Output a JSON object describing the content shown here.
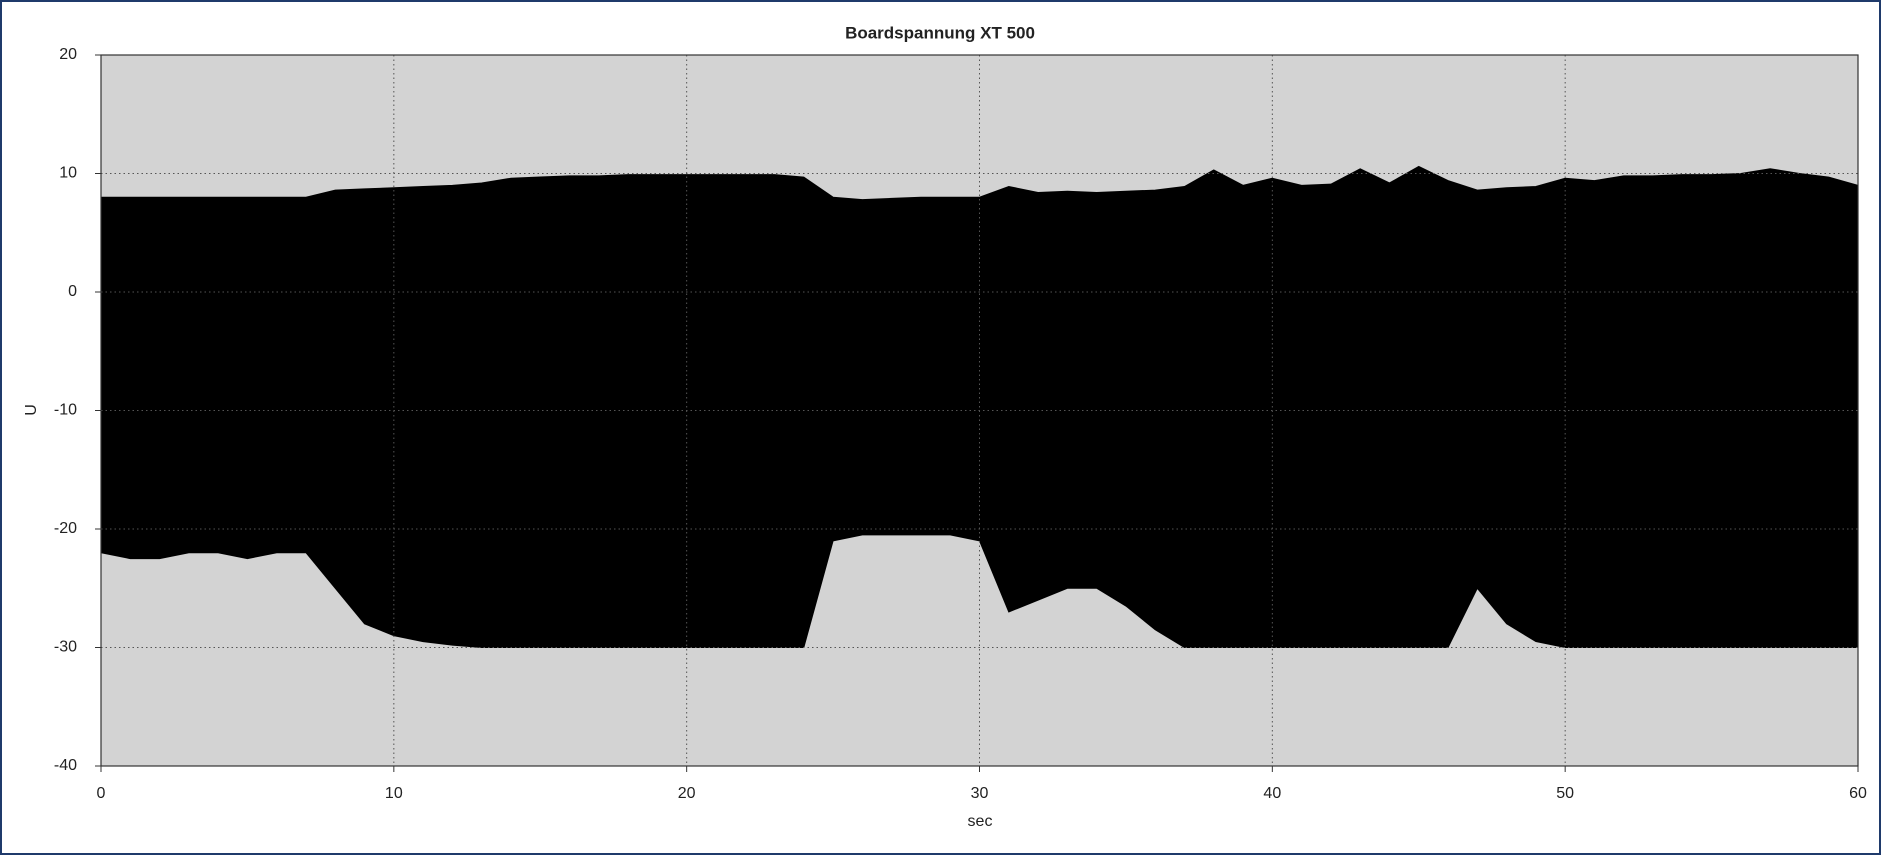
{
  "chart_data": {
    "type": "band",
    "title": "Boardspannung XT 500",
    "xlabel": "sec",
    "ylabel": "U",
    "x": [
      0,
      1,
      2,
      3,
      4,
      5,
      6,
      7,
      8,
      9,
      10,
      11,
      12,
      13,
      14,
      15,
      16,
      17,
      18,
      19,
      20,
      21,
      22,
      23,
      24,
      25,
      26,
      27,
      28,
      29,
      30,
      31,
      32,
      33,
      34,
      35,
      36,
      37,
      38,
      39,
      40,
      41,
      42,
      43,
      44,
      45,
      46,
      47,
      48,
      49,
      50,
      51,
      52,
      53,
      54,
      55,
      56,
      57,
      58,
      59,
      60
    ],
    "high": [
      8,
      8,
      8,
      8,
      8,
      8,
      8,
      8,
      8.6,
      8.7,
      8.8,
      8.9,
      9,
      9.2,
      9.6,
      9.7,
      9.8,
      9.8,
      9.9,
      9.9,
      9.9,
      9.9,
      9.9,
      9.9,
      9.7,
      8,
      7.8,
      7.9,
      8,
      8,
      8,
      8.9,
      8.4,
      8.5,
      8.4,
      8.5,
      8.6,
      8.9,
      10.3,
      9,
      9.6,
      9,
      9.1,
      10.4,
      9.2,
      10.6,
      9.4,
      8.6,
      8.8,
      8.9,
      9.6,
      9.4,
      9.8,
      9.8,
      9.9,
      9.9,
      10,
      10.4,
      10,
      9.7,
      9
    ],
    "low": [
      -22,
      -22.5,
      -22.5,
      -22,
      -22,
      -22.5,
      -22,
      -22,
      -25,
      -28,
      -29,
      -29.5,
      -29.8,
      -30,
      -30,
      -30,
      -30,
      -30,
      -30,
      -30,
      -30,
      -30,
      -30,
      -30,
      -30,
      -21,
      -20.5,
      -20.5,
      -20.5,
      -20.5,
      -21,
      -27,
      -26,
      -25,
      -25,
      -26.5,
      -28.5,
      -30,
      -30,
      -30,
      -30,
      -30,
      -30,
      -30,
      -30,
      -30,
      -30,
      -25,
      -28,
      -29.5,
      -30,
      -30,
      -30,
      -30,
      -30,
      -30,
      -30,
      -30,
      -30,
      -30,
      -30
    ],
    "color": "#000000",
    "background": "#d3d3d3",
    "xlim": [
      0,
      60
    ],
    "xticks": [
      0,
      10,
      20,
      30,
      40,
      50,
      60
    ],
    "ylim": [
      -40,
      20
    ],
    "yticks": [
      -40,
      -30,
      -20,
      -10,
      0,
      10,
      20
    ],
    "grid": true
  }
}
